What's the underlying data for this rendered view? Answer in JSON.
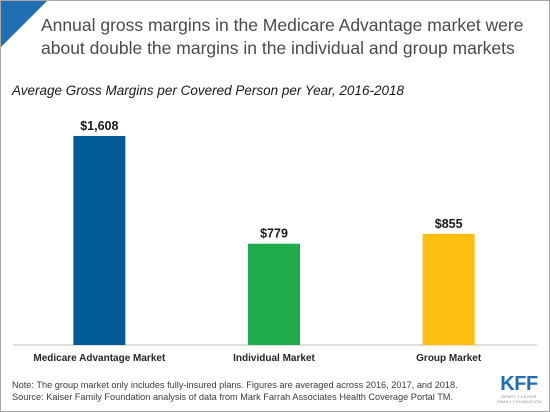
{
  "headline": "Annual gross margins in the Medicare Advantage  market were about double the margins in the individual and group markets",
  "chart_data": {
    "type": "bar",
    "title": "Average Gross Margins per Covered Person per Year, 2016-2018",
    "categories": [
      "Medicare Advantage Market",
      "Individual Market",
      "Group Market"
    ],
    "values": [
      1608,
      779,
      855
    ],
    "value_labels": [
      "$1,608",
      "$779",
      "$855"
    ],
    "colors": [
      "#005a96",
      "#1eab4b",
      "#fdbe10"
    ],
    "xlabel": "",
    "ylabel": "",
    "ylim": [
      0,
      1800
    ],
    "grid": false,
    "legend": "none"
  },
  "notes": {
    "note": "Note: The group market only includes fully-insured  plans. Figures are averaged across 2016, 2017, and 2018.",
    "source": "Source: Kaiser Family Foundation analysis of data from Mark Farrah Associates Health Coverage Portal TM."
  },
  "logo": {
    "main": "KFF",
    "sub1": "HENRY J KAISER",
    "sub2": "FAMILY FOUNDATION"
  },
  "colors": {
    "accent": "#1f6fb5",
    "axis": "#bfbfbf"
  }
}
